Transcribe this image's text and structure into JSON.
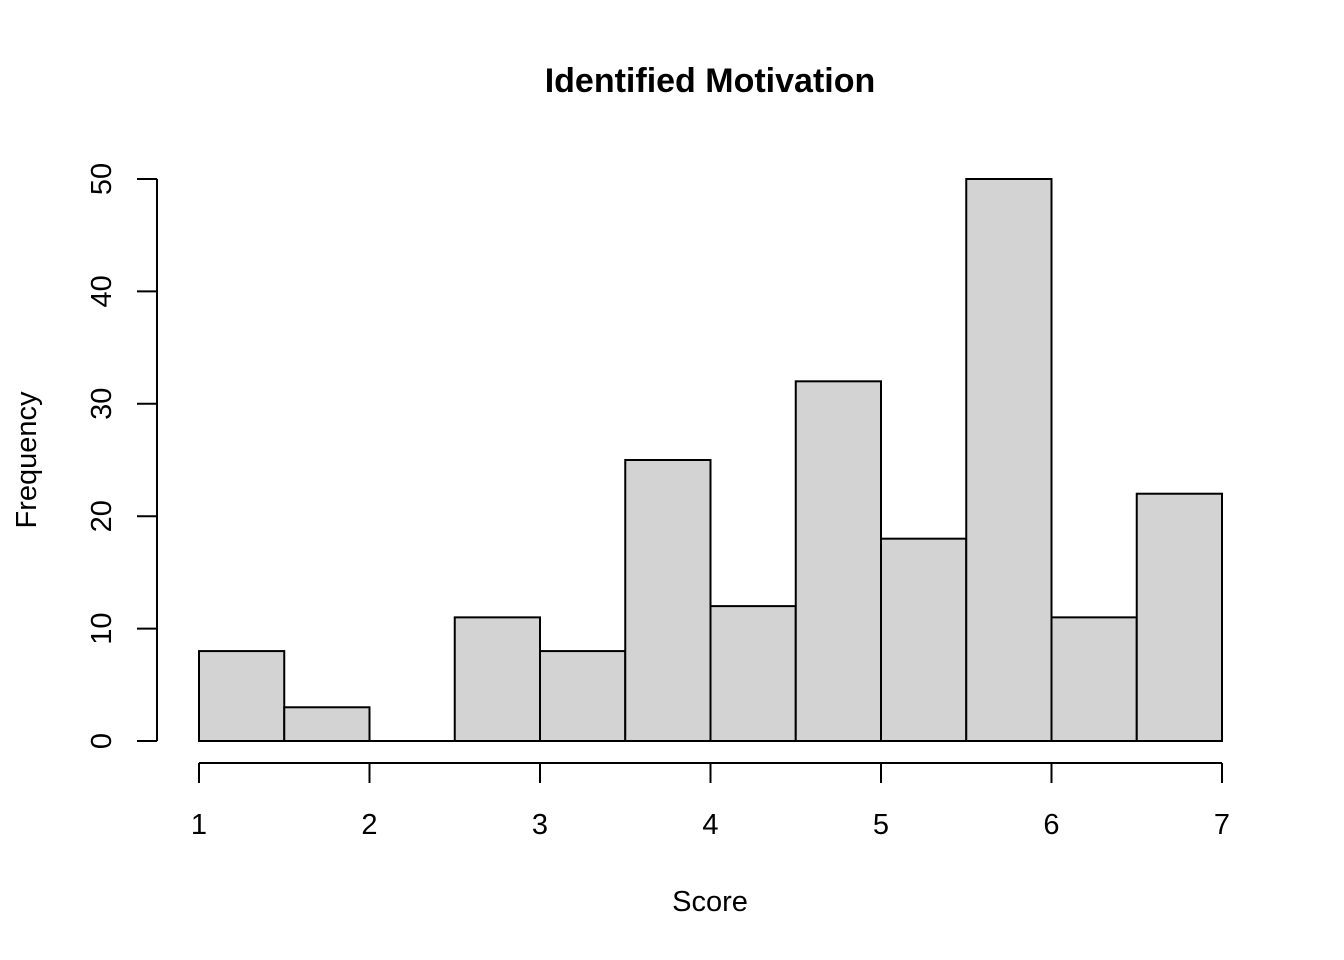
{
  "chart_data": {
    "type": "bar",
    "subtype": "histogram",
    "title": "Identified Motivation",
    "xlabel": "Score",
    "ylabel": "Frequency",
    "bins": [
      {
        "start": 1.0,
        "end": 1.5,
        "count": 8
      },
      {
        "start": 1.5,
        "end": 2.0,
        "count": 3
      },
      {
        "start": 2.0,
        "end": 2.5,
        "count": 0
      },
      {
        "start": 2.5,
        "end": 3.0,
        "count": 11
      },
      {
        "start": 3.0,
        "end": 3.5,
        "count": 8
      },
      {
        "start": 3.5,
        "end": 4.0,
        "count": 25
      },
      {
        "start": 4.0,
        "end": 4.5,
        "count": 12
      },
      {
        "start": 4.5,
        "end": 5.0,
        "count": 32
      },
      {
        "start": 5.0,
        "end": 5.5,
        "count": 18
      },
      {
        "start": 5.5,
        "end": 6.0,
        "count": 50
      },
      {
        "start": 6.0,
        "end": 6.5,
        "count": 11
      },
      {
        "start": 6.5,
        "end": 7.0,
        "count": 22
      }
    ],
    "xlim": [
      1,
      7
    ],
    "ylim": [
      0,
      50
    ],
    "x_ticks": [
      "1",
      "2",
      "3",
      "4",
      "5",
      "6",
      "7"
    ],
    "y_ticks": [
      "0",
      "10",
      "20",
      "30",
      "40",
      "50"
    ],
    "bar_color": "#d3d3d3",
    "grid": false,
    "legend": "none"
  }
}
